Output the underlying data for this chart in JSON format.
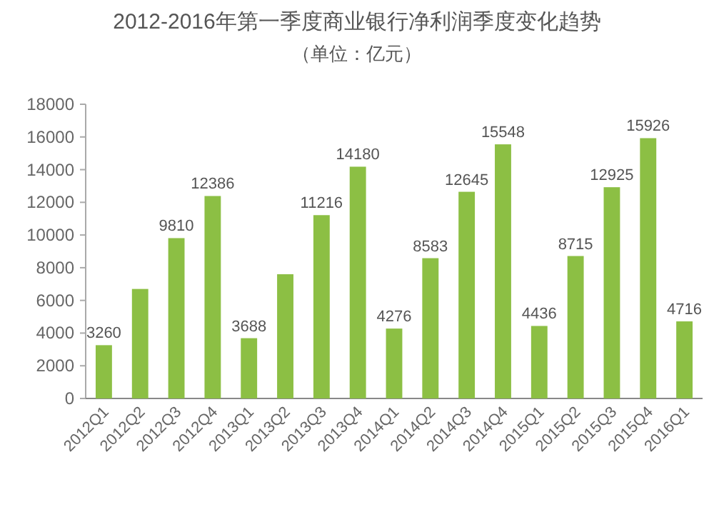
{
  "chart_data": {
    "type": "bar",
    "title": "2012-2016年第一季度商业银行净利润季度变化趋势",
    "subtitle": "（单位：亿元）",
    "categories": [
      "2012Q1",
      "2012Q2",
      "2012Q3",
      "2012Q4",
      "2013Q1",
      "2013Q2",
      "2013Q3",
      "2013Q4",
      "2014Q1",
      "2014Q2",
      "2014Q3",
      "2014Q4",
      "2015Q1",
      "2015Q2",
      "2015Q3",
      "2015Q4",
      "2016Q1"
    ],
    "values": [
      3260,
      6700,
      9810,
      12386,
      3688,
      7600,
      11216,
      14180,
      4276,
      8583,
      12645,
      15548,
      4436,
      8715,
      12925,
      15926,
      4716
    ],
    "value_labels": [
      "3260",
      null,
      "9810",
      "12386",
      "3688",
      null,
      "11216",
      "14180",
      "4276",
      "8583",
      "12645",
      "15548",
      "4436",
      "8715",
      "12925",
      "15926",
      "4716"
    ],
    "color": "#8cbf44",
    "ylim": [
      0,
      18000
    ],
    "yticks": [
      0,
      2000,
      4000,
      6000,
      8000,
      10000,
      12000,
      14000,
      16000,
      18000
    ],
    "grid": false
  }
}
